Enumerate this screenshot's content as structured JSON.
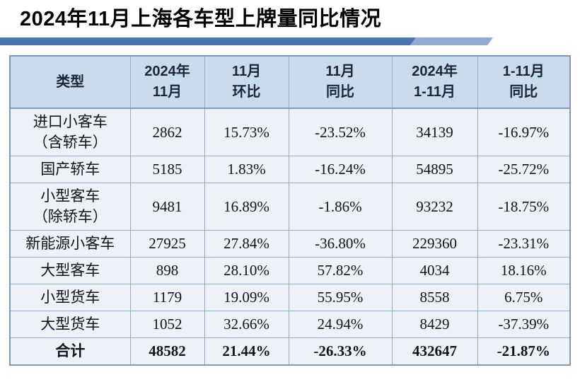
{
  "title": "2024年11月上海各车型上牌量同比情况",
  "colors": {
    "bar_dark": "#4a74b2",
    "bar_light": "#92a9d3",
    "header_bg": "#cadbee",
    "row_bg": "#eef1f8",
    "border": "#93abce",
    "border_strong": "#7b99c4"
  },
  "table": {
    "headers": [
      "类型",
      "2024年\n11月",
      "11月\n环比",
      "11月\n同比",
      "2024年\n1-11月",
      "1-11月\n同比"
    ],
    "rows": [
      {
        "cells": [
          "进口小客车\n（含轿车）",
          "2862",
          "15.73%",
          "-23.52%",
          "34139",
          "-16.97%"
        ],
        "bold": false
      },
      {
        "cells": [
          "国产轿车",
          "5185",
          "1.83%",
          "-16.24%",
          "54895",
          "-25.72%"
        ],
        "bold": false
      },
      {
        "cells": [
          "小型客车\n（除轿车）",
          "9481",
          "16.89%",
          "-1.86%",
          "93232",
          "-18.75%"
        ],
        "bold": false
      },
      {
        "cells": [
          "新能源小客车",
          "27925",
          "27.84%",
          "-36.80%",
          "229360",
          "-23.31%"
        ],
        "bold": false
      },
      {
        "cells": [
          "大型客车",
          "898",
          "28.10%",
          "57.82%",
          "4034",
          "18.16%"
        ],
        "bold": false
      },
      {
        "cells": [
          "小型货车",
          "1179",
          "19.09%",
          "55.95%",
          "8558",
          "6.75%"
        ],
        "bold": false
      },
      {
        "cells": [
          "大型货车",
          "1052",
          "32.66%",
          "24.94%",
          "8429",
          "-37.39%"
        ],
        "bold": false
      },
      {
        "cells": [
          "合计",
          "48582",
          "21.44%",
          "-26.33%",
          "432647",
          "-21.87%"
        ],
        "bold": true
      }
    ]
  },
  "chart_data": {
    "type": "table",
    "title": "2024年11月上海各车型上牌量同比情况",
    "columns": [
      "类型",
      "2024年11月",
      "11月环比",
      "11月同比",
      "2024年1-11月",
      "1-11月同比"
    ],
    "rows": [
      [
        "进口小客车（含轿车）",
        2862,
        "15.73%",
        "-23.52%",
        34139,
        "-16.97%"
      ],
      [
        "国产轿车",
        5185,
        "1.83%",
        "-16.24%",
        54895,
        "-25.72%"
      ],
      [
        "小型客车（除轿车）",
        9481,
        "16.89%",
        "-1.86%",
        93232,
        "-18.75%"
      ],
      [
        "新能源小客车",
        27925,
        "27.84%",
        "-36.80%",
        229360,
        "-23.31%"
      ],
      [
        "大型客车",
        898,
        "28.10%",
        "57.82%",
        4034,
        "18.16%"
      ],
      [
        "小型货车",
        1179,
        "19.09%",
        "55.95%",
        8558,
        "6.75%"
      ],
      [
        "大型货车",
        1052,
        "32.66%",
        "24.94%",
        8429,
        "-37.39%"
      ],
      [
        "合计",
        48582,
        "21.44%",
        "-26.33%",
        432647,
        "-21.87%"
      ]
    ]
  }
}
